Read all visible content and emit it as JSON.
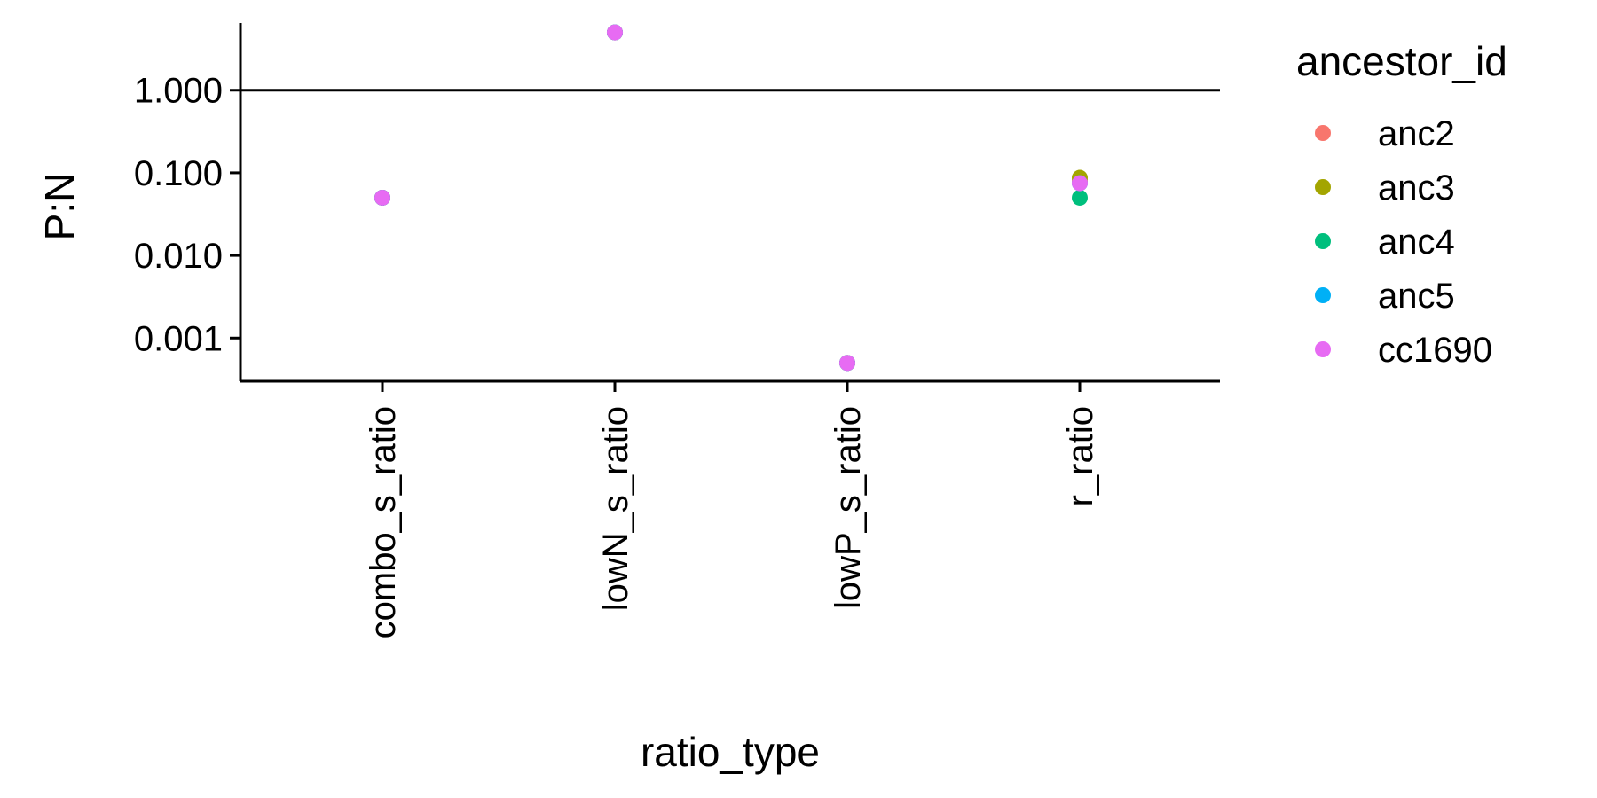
{
  "chart_data": {
    "type": "scatter",
    "title": "",
    "xlabel": "ratio_type",
    "ylabel": "P:N",
    "y_scale": "log10",
    "ylim": [
      0.0003,
      6.5
    ],
    "y_ticks": [
      0.001,
      0.01,
      0.1,
      1
    ],
    "y_tick_labels": [
      "0.001",
      "0.010",
      "0.100",
      "1.000"
    ],
    "categories": [
      "combo_s_ratio",
      "lowN_s_ratio",
      "lowP_s_ratio",
      "r_ratio"
    ],
    "reference_line": {
      "y": 1
    },
    "grid": false,
    "legend": {
      "title": "ancestor_id",
      "position": "right"
    },
    "series": [
      {
        "name": "anc2",
        "color": "#F8766D",
        "points": [
          {
            "x": "combo_s_ratio",
            "y": 0.05
          },
          {
            "x": "lowN_s_ratio",
            "y": 5.0
          },
          {
            "x": "lowP_s_ratio",
            "y": 0.0005
          },
          {
            "x": "r_ratio",
            "y": 0.08
          }
        ]
      },
      {
        "name": "anc3",
        "color": "#A3A500",
        "points": [
          {
            "x": "combo_s_ratio",
            "y": 0.05
          },
          {
            "x": "lowN_s_ratio",
            "y": 5.0
          },
          {
            "x": "lowP_s_ratio",
            "y": 0.0005
          },
          {
            "x": "r_ratio",
            "y": 0.087
          }
        ]
      },
      {
        "name": "anc4",
        "color": "#00BF7D",
        "points": [
          {
            "x": "combo_s_ratio",
            "y": 0.05
          },
          {
            "x": "lowN_s_ratio",
            "y": 5.0
          },
          {
            "x": "lowP_s_ratio",
            "y": 0.0005
          },
          {
            "x": "r_ratio",
            "y": 0.05
          }
        ]
      },
      {
        "name": "anc5",
        "color": "#00B0F6",
        "points": [
          {
            "x": "combo_s_ratio",
            "y": 0.05
          },
          {
            "x": "lowN_s_ratio",
            "y": 5.0
          },
          {
            "x": "lowP_s_ratio",
            "y": 0.0005
          },
          {
            "x": "r_ratio",
            "y": 0.075
          }
        ]
      },
      {
        "name": "cc1690",
        "color": "#E76BF3",
        "points": [
          {
            "x": "combo_s_ratio",
            "y": 0.05
          },
          {
            "x": "lowN_s_ratio",
            "y": 5.0
          },
          {
            "x": "lowP_s_ratio",
            "y": 0.0005
          },
          {
            "x": "r_ratio",
            "y": 0.075
          }
        ]
      }
    ]
  }
}
